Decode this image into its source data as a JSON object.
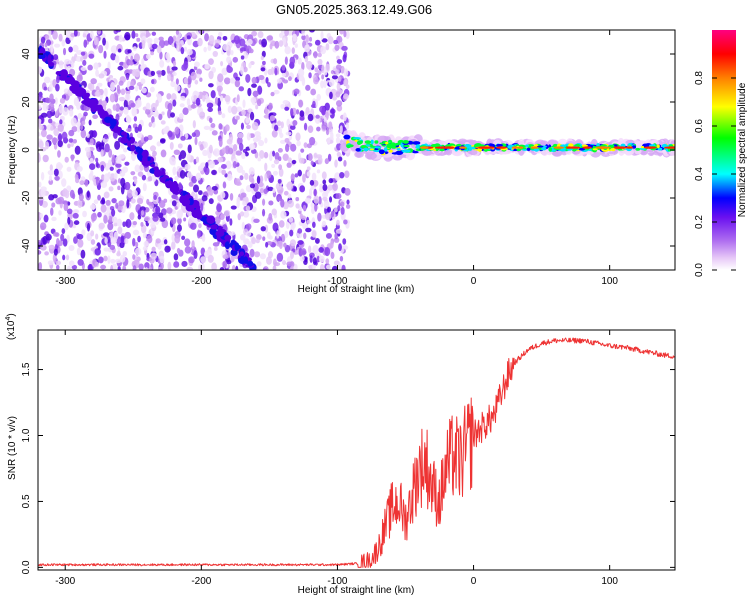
{
  "title": "GN05.2025.363.12.49.G06",
  "chart_data": [
    {
      "type": "heatmap",
      "xlabel": "Height of straight line (km)",
      "ylabel": "Frequency (Hz)",
      "xlim": [
        -320,
        148
      ],
      "ylim": [
        -50,
        50
      ],
      "xticks": [
        -300,
        -200,
        -100,
        0,
        100
      ],
      "yticks": [
        -40,
        -20,
        0,
        20,
        40
      ],
      "colorbar": {
        "label": "Normalized spectral amplitude",
        "range": [
          0,
          1
        ],
        "ticks": [
          0.0,
          0.2,
          0.4,
          0.6,
          0.8
        ],
        "tick_labels": [
          "0.0",
          "0.2",
          "0.4",
          "0.6",
          "0.8"
        ],
        "colors": [
          "#ffffff",
          "#c98cf0",
          "#7a1ff0",
          "#0000ff",
          "#00ffff",
          "#00ff00",
          "#ffff00",
          "#ff8000",
          "#ff0000",
          "#ff0080"
        ]
      },
      "features": {
        "noise_region_x": [
          -320,
          -92
        ],
        "diagonal_track": {
          "x": [
            -320,
            -160
          ],
          "y": [
            42,
            -50
          ]
        },
        "signal_track": {
          "x": [
            -95,
            -80,
            -60,
            -40,
            -20,
            0,
            20,
            40,
            60,
            80,
            100,
            120,
            148
          ],
          "y": [
            5,
            1,
            1,
            1,
            1,
            1,
            1,
            1,
            1,
            1,
            1,
            1,
            1
          ]
        }
      }
    },
    {
      "type": "line",
      "xlabel": "Height of straight line (km)",
      "ylabel": "SNR (10 * v/v)",
      "scale_label": "(x10",
      "scale_exp": "4",
      "xlim": [
        -320,
        148
      ],
      "ylim": [
        -0.02,
        1.8
      ],
      "xticks": [
        -300,
        -200,
        -100,
        0,
        100
      ],
      "yticks": [
        0.0,
        0.5,
        1.0,
        1.5
      ],
      "ytick_labels": [
        "0.0",
        "0.5",
        "1.0",
        "1.5"
      ],
      "color": "#ee3333",
      "x": [
        -320,
        -260,
        -200,
        -150,
        -100,
        -85,
        -75,
        -70,
        -65,
        -60,
        -55,
        -50,
        -45,
        -40,
        -35,
        -30,
        -25,
        -20,
        -15,
        -10,
        -5,
        0,
        5,
        10,
        15,
        20,
        25,
        30,
        40,
        50,
        60,
        70,
        80,
        90,
        100,
        110,
        120,
        130,
        140,
        148
      ],
      "y": [
        0.02,
        0.02,
        0.02,
        0.02,
        0.02,
        0.03,
        0.06,
        0.15,
        0.3,
        0.45,
        0.5,
        0.35,
        0.55,
        0.75,
        0.8,
        0.6,
        0.5,
        0.75,
        0.85,
        0.8,
        0.9,
        1.0,
        1.05,
        1.1,
        1.15,
        1.3,
        1.45,
        1.55,
        1.65,
        1.7,
        1.72,
        1.72,
        1.72,
        1.7,
        1.68,
        1.67,
        1.65,
        1.63,
        1.61,
        1.6
      ]
    }
  ]
}
